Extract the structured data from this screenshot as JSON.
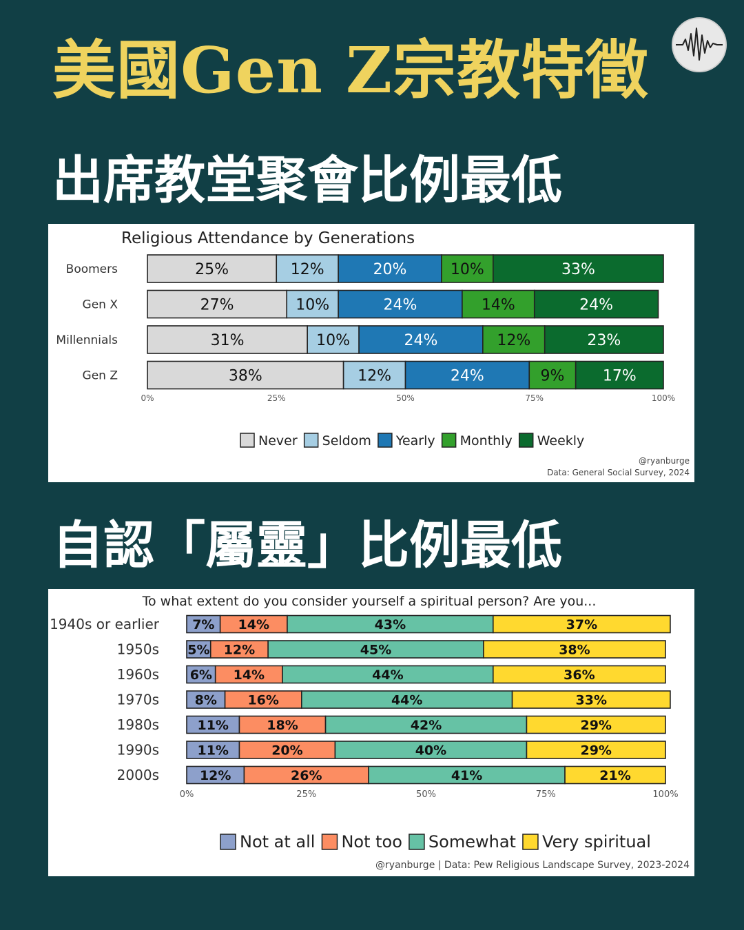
{
  "header": {
    "title": "美國Gen Z宗教特徵",
    "subtitle_attendance": "出席教堂聚會比例最低",
    "subtitle_spiritual": "自認「屬靈」比例最低",
    "logo_icon": "heartbeat-wave-icon"
  },
  "chart_data": [
    {
      "type": "bar",
      "orientation": "horizontal",
      "stacked": true,
      "title": "Religious Attendance by Generations",
      "categories": [
        "Boomers",
        "Gen X",
        "Millennials",
        "Gen Z"
      ],
      "series": [
        {
          "name": "Never",
          "color": "#d9d9d9",
          "values": [
            25,
            27,
            31,
            38
          ]
        },
        {
          "name": "Seldom",
          "color": "#a6cee3",
          "values": [
            12,
            10,
            10,
            12
          ]
        },
        {
          "name": "Yearly",
          "color": "#1f78b4",
          "values": [
            20,
            24,
            24,
            24
          ]
        },
        {
          "name": "Monthly",
          "color": "#33a02c",
          "values": [
            10,
            14,
            12,
            9
          ]
        },
        {
          "name": "Weekly",
          "color": "#0b6b2e",
          "values": [
            33,
            24,
            23,
            17
          ]
        }
      ],
      "xlim": [
        0,
        100
      ],
      "xticks": [
        "0%",
        "25%",
        "50%",
        "75%",
        "100%"
      ],
      "legend_position": "bottom",
      "credit": "@ryanburge",
      "source": "Data: General Social Survey, 2024"
    },
    {
      "type": "bar",
      "orientation": "horizontal",
      "stacked": true,
      "title": "To what extent do you consider yourself a spiritual person? Are you...",
      "categories": [
        "1940s or earlier",
        "1950s",
        "1960s",
        "1970s",
        "1980s",
        "1990s",
        "2000s"
      ],
      "series": [
        {
          "name": "Not at all",
          "color": "#8da0cb",
          "values": [
            7,
            5,
            6,
            8,
            11,
            11,
            12
          ]
        },
        {
          "name": "Not too",
          "color": "#fc8d62",
          "values": [
            14,
            12,
            14,
            16,
            18,
            20,
            26
          ]
        },
        {
          "name": "Somewhat",
          "color": "#66c2a5",
          "values": [
            43,
            45,
            44,
            44,
            42,
            40,
            41
          ]
        },
        {
          "name": "Very spiritual",
          "color": "#ffd92f",
          "values": [
            37,
            38,
            36,
            33,
            29,
            29,
            21
          ]
        }
      ],
      "xlim": [
        0,
        100
      ],
      "xticks": [
        "0%",
        "25%",
        "50%",
        "75%",
        "100%"
      ],
      "legend_position": "bottom",
      "source": "@ryanburge | Data: Pew Religious Landscape Survey, 2023-2024"
    }
  ]
}
